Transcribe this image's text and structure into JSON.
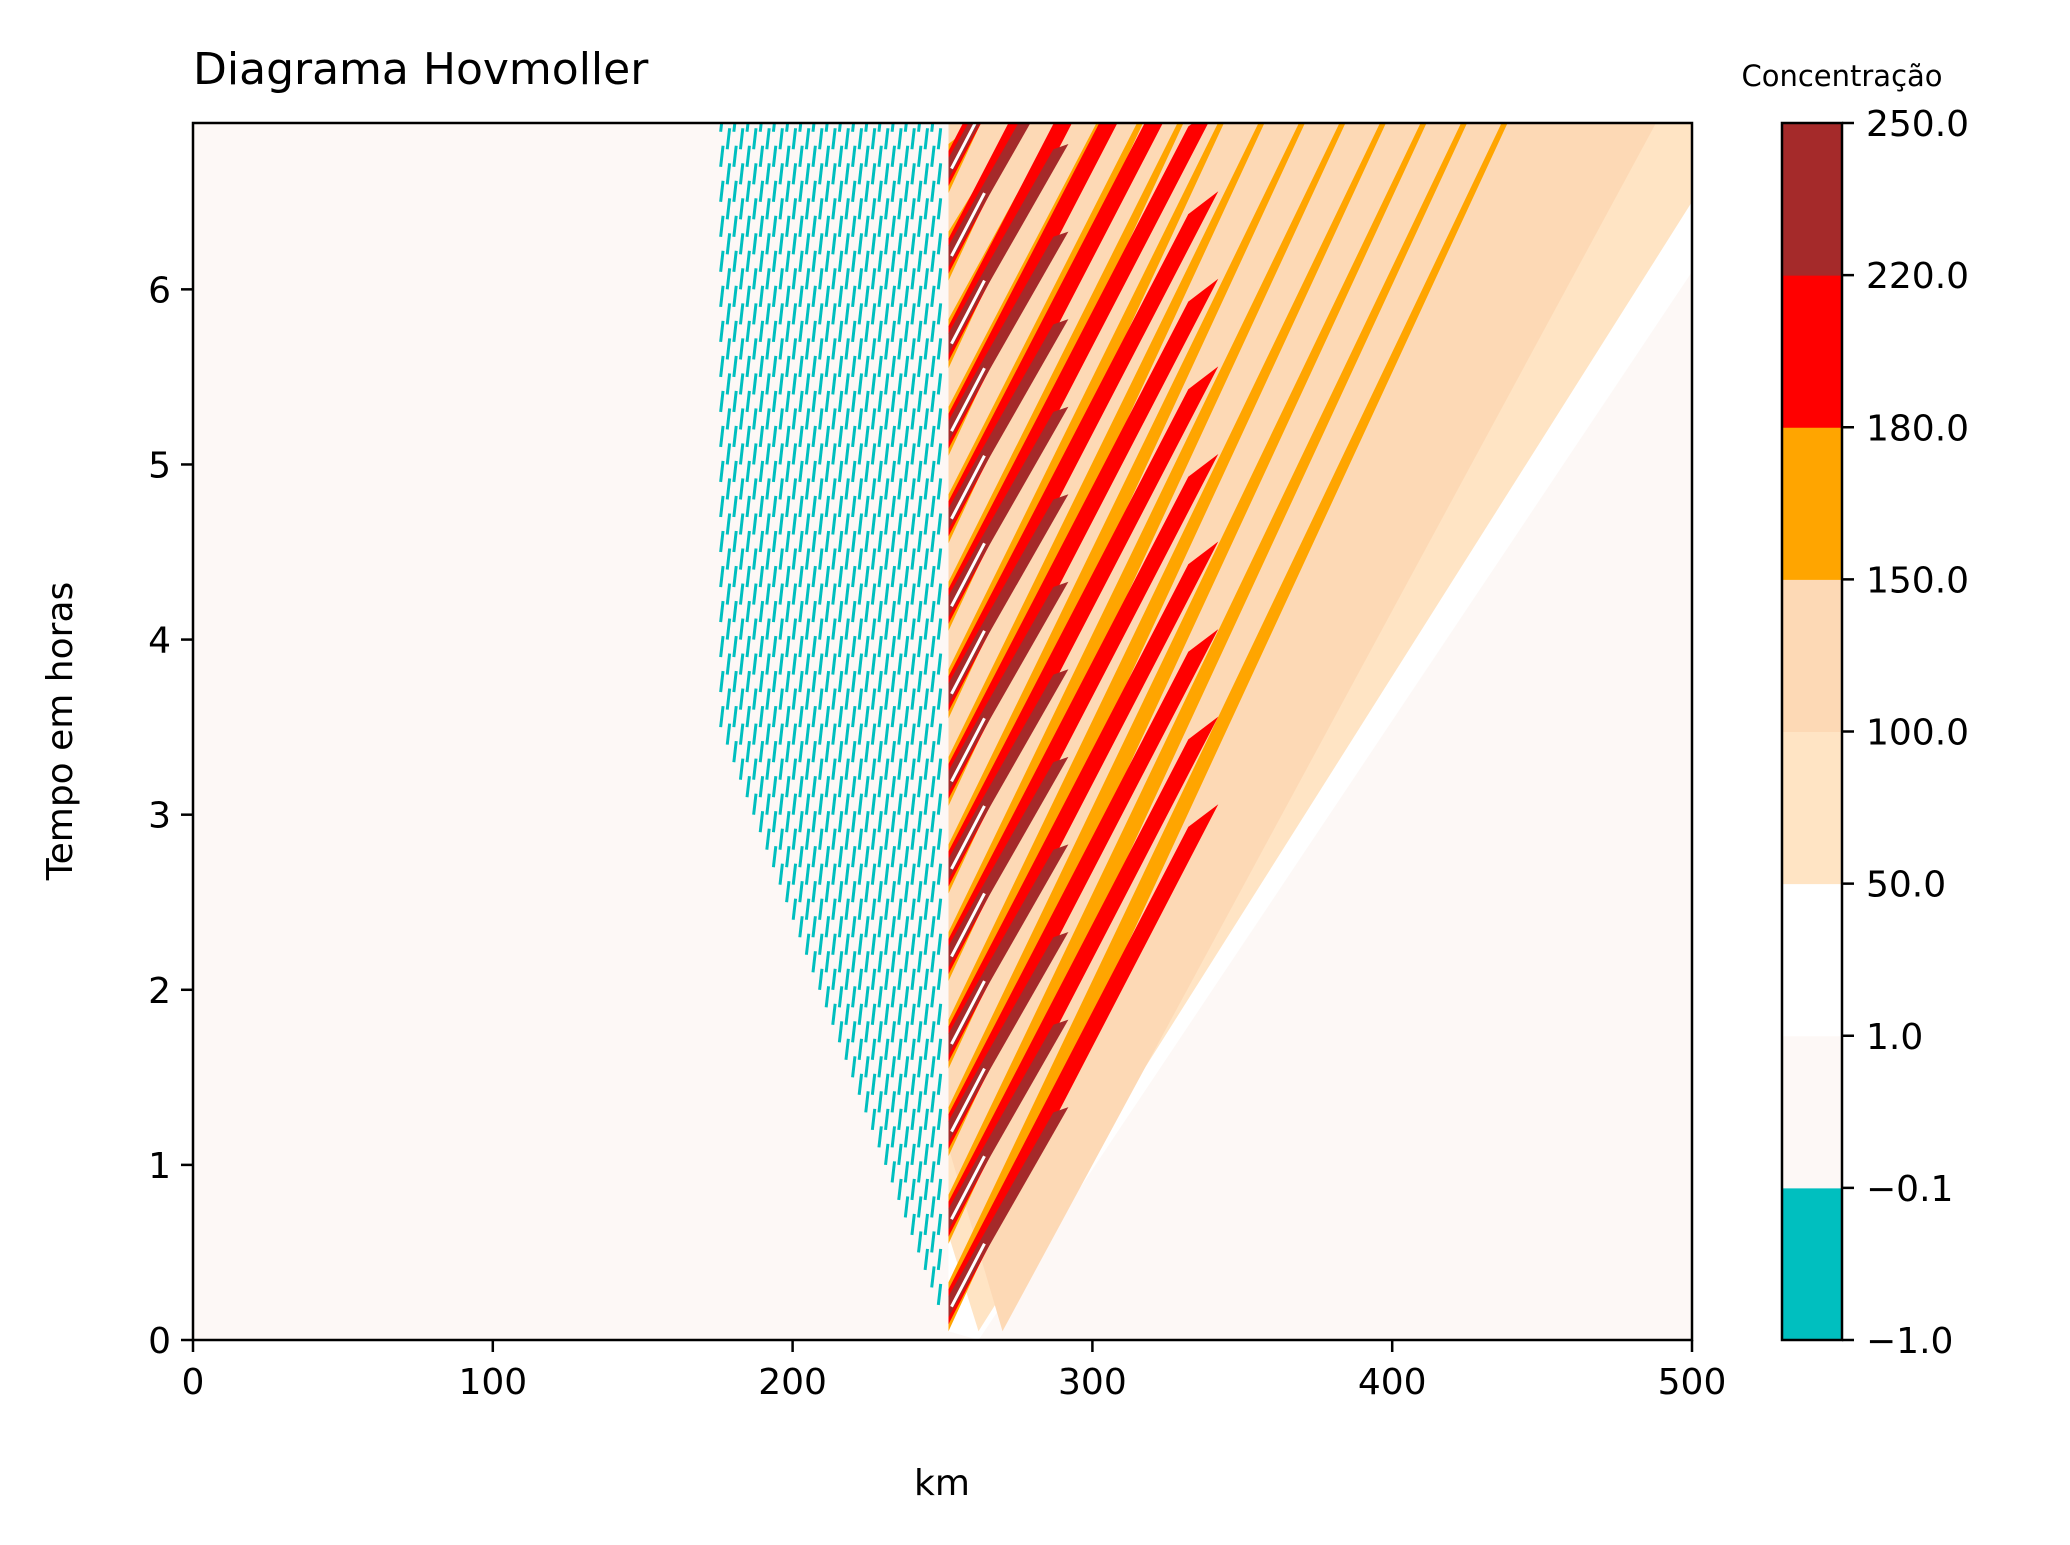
{
  "chart_data": {
    "type": "heatmap",
    "title": "Diagrama Hovmoller",
    "xlabel": "km",
    "ylabel": "Tempo em horas",
    "xlim": [
      0,
      500
    ],
    "ylim": [
      0,
      6.95
    ],
    "xticks": [
      0,
      100,
      200,
      300,
      400,
      500
    ],
    "yticks": [
      0,
      1,
      2,
      3,
      4,
      5,
      6
    ],
    "grid": false,
    "colorbar": {
      "title": "Concentração",
      "tick_labels": [
        "−1.0",
        "−0.1",
        "1.0",
        "50.0",
        "100.0",
        "150.0",
        "180.0",
        "220.0",
        "250.0"
      ],
      "levels": [
        -1.0,
        -0.1,
        1.0,
        50.0,
        100.0,
        150.0,
        180.0,
        220.0,
        250.0
      ],
      "colors": [
        "#00bfbf",
        "#fdf8f6",
        "#ffffff",
        "#ffe4c4",
        "#fdd9b5",
        "#ffa500",
        "#ff0000",
        "#a52a2a"
      ]
    },
    "features": {
      "background_level": "-0.1 to 1.0",
      "source_x_km": 252,
      "front_start": {
        "x": 255,
        "y": 0
      },
      "front_end": {
        "x": 500,
        "y": 6.95
      },
      "outer_band_end": {
        "x": 500,
        "y": 6.1
      },
      "band_period_hours": 0.5,
      "negative_region_x": [
        175,
        252
      ]
    }
  }
}
